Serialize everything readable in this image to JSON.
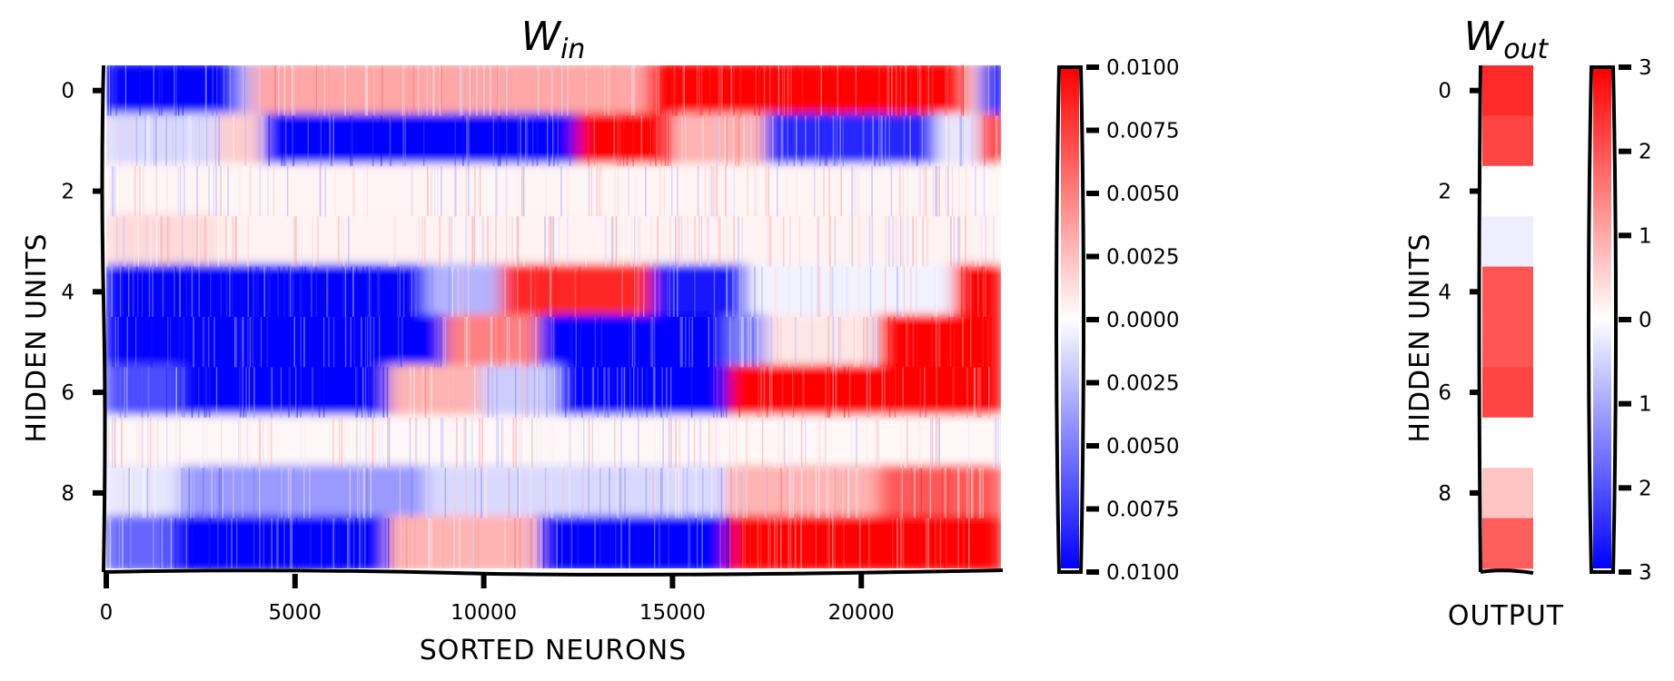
{
  "chart_data": [
    {
      "type": "heatmap",
      "title": "W",
      "title_subscript": "in",
      "xlabel": "SORTED NEURONS",
      "ylabel": "HIDDEN UNITS",
      "x_ticks": [
        "0",
        "5000",
        "10000",
        "15000",
        "20000"
      ],
      "x_tick_values": [
        0,
        5000,
        10000,
        15000,
        20000
      ],
      "xlim": [
        0,
        23700
      ],
      "y_ticks": [
        "0",
        "2",
        "4",
        "6",
        "8"
      ],
      "y_tick_values": [
        0,
        2,
        4,
        6,
        8
      ],
      "n_rows": 10,
      "colormap": "bwr",
      "colorbar": {
        "min": -0.01,
        "max": 0.01,
        "tick_labels": [
          "0.0100",
          "0.0075",
          "0.0050",
          "0.0025",
          "0.0000",
          "0.0025",
          "0.0050",
          "0.0075",
          "0.0100"
        ]
      },
      "row_segments": [
        [
          {
            "x0": 0,
            "x1": 3500,
            "v": -1
          },
          {
            "x0": 3500,
            "x1": 3900,
            "v": -0.3
          },
          {
            "x0": 3900,
            "x1": 14400,
            "v": 0.35
          },
          {
            "x0": 14400,
            "x1": 22800,
            "v": 1
          },
          {
            "x0": 22800,
            "x1": 23200,
            "v": 0.2
          },
          {
            "x0": 23200,
            "x1": 23700,
            "v": -1
          }
        ],
        [
          {
            "x0": 0,
            "x1": 3000,
            "v": -0.15
          },
          {
            "x0": 3000,
            "x1": 4200,
            "v": 0.2
          },
          {
            "x0": 4200,
            "x1": 12500,
            "v": -1
          },
          {
            "x0": 12500,
            "x1": 15000,
            "v": 1
          },
          {
            "x0": 15000,
            "x1": 17500,
            "v": 0.3
          },
          {
            "x0": 17500,
            "x1": 22000,
            "v": -0.85
          },
          {
            "x0": 22000,
            "x1": 23200,
            "v": -0.1
          },
          {
            "x0": 23200,
            "x1": 23700,
            "v": 1
          }
        ],
        [
          {
            "x0": 0,
            "x1": 23700,
            "v": 0.04
          }
        ],
        [
          {
            "x0": 0,
            "x1": 3000,
            "v": 0.15
          },
          {
            "x0": 3000,
            "x1": 23700,
            "v": 0.05
          }
        ],
        [
          {
            "x0": 0,
            "x1": 8500,
            "v": -1
          },
          {
            "x0": 8500,
            "x1": 10500,
            "v": -0.3
          },
          {
            "x0": 10500,
            "x1": 14500,
            "v": 0.85
          },
          {
            "x0": 14500,
            "x1": 17000,
            "v": -0.9
          },
          {
            "x0": 17000,
            "x1": 22500,
            "v": -0.05
          },
          {
            "x0": 22500,
            "x1": 23700,
            "v": 1
          }
        ],
        [
          {
            "x0": 0,
            "x1": 9000,
            "v": -1
          },
          {
            "x0": 9000,
            "x1": 11500,
            "v": 0.5
          },
          {
            "x0": 11500,
            "x1": 16500,
            "v": -1
          },
          {
            "x0": 16500,
            "x1": 17500,
            "v": -0.5
          },
          {
            "x0": 17500,
            "x1": 20500,
            "v": 0.1
          },
          {
            "x0": 20500,
            "x1": 23700,
            "v": 1
          }
        ],
        [
          {
            "x0": 0,
            "x1": 2000,
            "v": -0.7
          },
          {
            "x0": 2000,
            "x1": 7500,
            "v": -1
          },
          {
            "x0": 7500,
            "x1": 10000,
            "v": 0.3
          },
          {
            "x0": 10000,
            "x1": 12000,
            "v": -0.2
          },
          {
            "x0": 12000,
            "x1": 16500,
            "v": -1
          },
          {
            "x0": 16500,
            "x1": 23700,
            "v": 1
          }
        ],
        [
          {
            "x0": 0,
            "x1": 23700,
            "v": 0.03
          }
        ],
        [
          {
            "x0": 0,
            "x1": 2000,
            "v": -0.1
          },
          {
            "x0": 2000,
            "x1": 8500,
            "v": -0.4
          },
          {
            "x0": 8500,
            "x1": 16500,
            "v": -0.15
          },
          {
            "x0": 16500,
            "x1": 20500,
            "v": 0.3
          },
          {
            "x0": 20500,
            "x1": 23700,
            "v": 0.65
          }
        ],
        [
          {
            "x0": 0,
            "x1": 1800,
            "v": -0.6
          },
          {
            "x0": 1800,
            "x1": 7500,
            "v": -1
          },
          {
            "x0": 7500,
            "x1": 11500,
            "v": 0.3
          },
          {
            "x0": 11500,
            "x1": 16500,
            "v": -1
          },
          {
            "x0": 16500,
            "x1": 23700,
            "v": 1
          }
        ]
      ]
    },
    {
      "type": "heatmap",
      "title": "W",
      "title_subscript": "out",
      "xlabel": "OUTPUT",
      "ylabel": "HIDDEN UNITS",
      "y_ticks": [
        "0",
        "2",
        "4",
        "6",
        "8"
      ],
      "y_tick_values": [
        0,
        2,
        4,
        6,
        8
      ],
      "colormap": "bwr",
      "values": [
        2.5,
        2.2,
        0.0,
        -0.2,
        2.0,
        2.0,
        2.2,
        0.0,
        0.7,
        1.9
      ],
      "colorbar": {
        "min": -3,
        "max": 3,
        "tick_labels": [
          "3",
          "2",
          "1",
          "0",
          "1",
          "2",
          "3"
        ]
      }
    }
  ]
}
